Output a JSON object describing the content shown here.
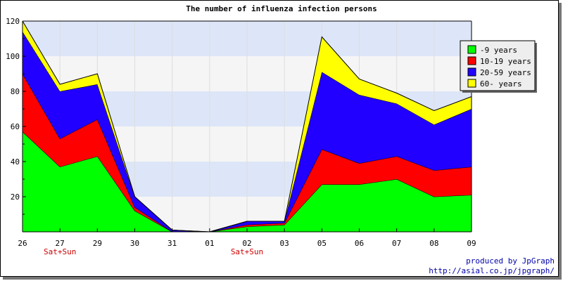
{
  "chart_data": {
    "type": "area",
    "title": "The number of influenza infection persons",
    "categories": [
      "26",
      "27",
      "29",
      "30",
      "31",
      "01",
      "02",
      "03",
      "05",
      "06",
      "07",
      "08",
      "09"
    ],
    "ylim": [
      0,
      120
    ],
    "yticks": [
      20,
      40,
      60,
      80,
      100,
      120
    ],
    "stacked": true,
    "legend_position": "right",
    "grid": true,
    "category_notes": [
      {
        "category": "27",
        "text": "Sat+Sun"
      },
      {
        "category": "02",
        "text": "Sat+Sun"
      }
    ],
    "series": [
      {
        "name": "-9 years",
        "color": "#00ff00",
        "values": [
          57,
          37,
          43,
          12,
          0,
          0,
          3,
          4,
          27,
          27,
          30,
          20,
          21
        ]
      },
      {
        "name": "10-19 years",
        "color": "#ff0000",
        "values": [
          33,
          16,
          21,
          2,
          0,
          0,
          1,
          1,
          20,
          12,
          13,
          15,
          16
        ]
      },
      {
        "name": "20-59 years",
        "color": "#2200ff",
        "values": [
          24,
          27,
          20,
          6,
          1,
          0,
          2,
          1,
          44,
          39,
          30,
          26,
          33
        ]
      },
      {
        "name": "60- years",
        "color": "#ffff00",
        "values": [
          6,
          4,
          6,
          0,
          0,
          0,
          0,
          0,
          20,
          9,
          6,
          8,
          7
        ]
      }
    ]
  },
  "credit": {
    "line1": "produced by JpGraph",
    "line2": "http://asial.co.jp/jpgraph/"
  }
}
